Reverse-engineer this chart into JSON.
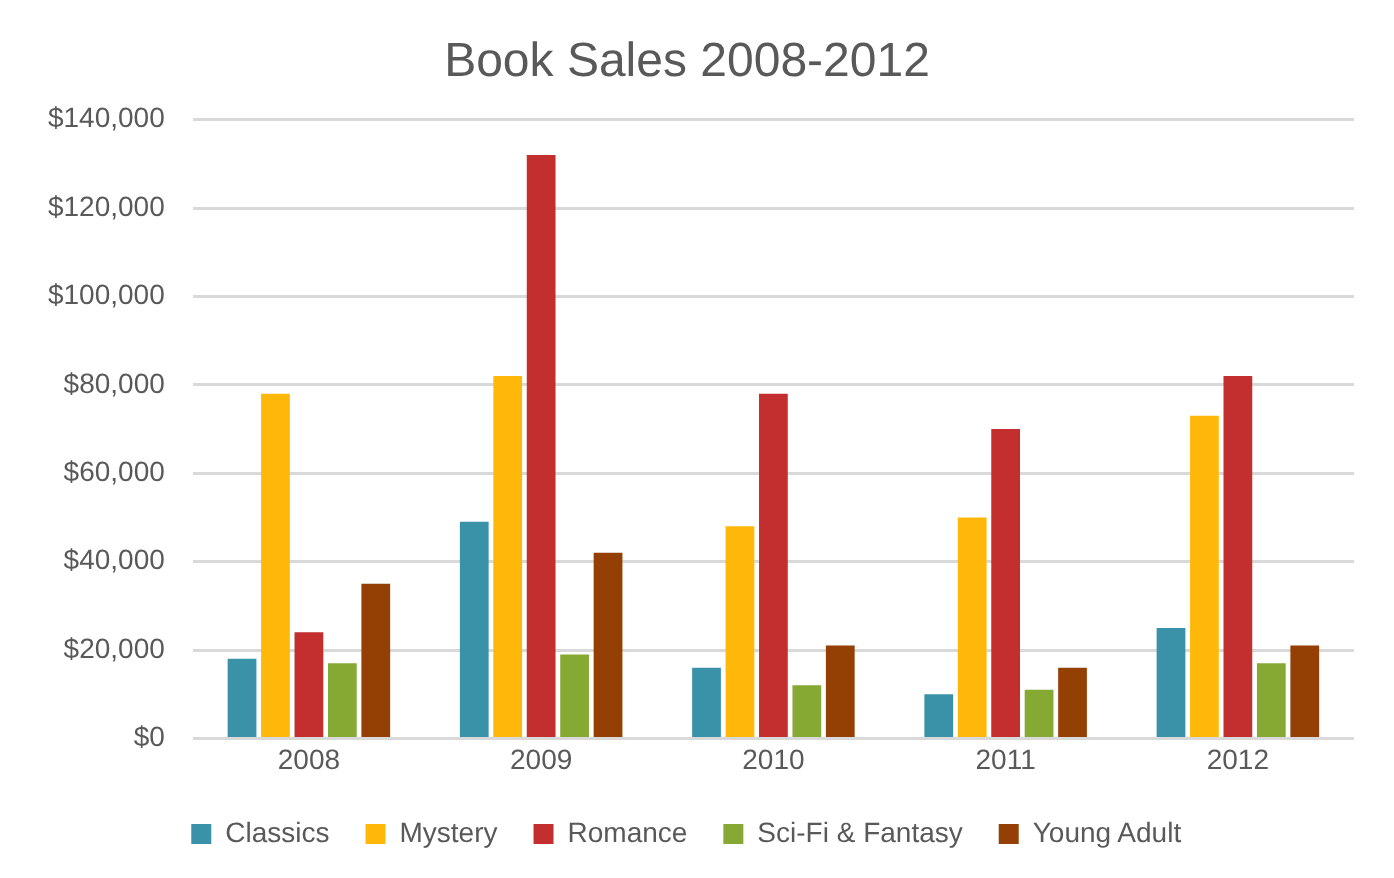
{
  "chart_data": {
    "type": "bar",
    "title": "Book Sales 2008-2012",
    "categories": [
      "2008",
      "2009",
      "2010",
      "2011",
      "2012"
    ],
    "series": [
      {
        "name": "Classics",
        "color": "#3a92a8",
        "values": [
          18000,
          49000,
          16000,
          10000,
          25000
        ]
      },
      {
        "name": "Mystery",
        "color": "#ffb80a",
        "values": [
          78000,
          82000,
          48000,
          50000,
          73000
        ]
      },
      {
        "name": "Romance",
        "color": "#c32f2f",
        "values": [
          24000,
          132000,
          78000,
          70000,
          82000
        ]
      },
      {
        "name": "Sci-Fi & Fantasy",
        "color": "#86a933",
        "values": [
          17000,
          19000,
          12000,
          11000,
          17000
        ]
      },
      {
        "name": "Young Adult",
        "color": "#943f03",
        "values": [
          35000,
          42000,
          21000,
          16000,
          21000
        ]
      }
    ],
    "ylim": [
      0,
      140000
    ],
    "yticks": [
      {
        "value": 0,
        "label": "$0"
      },
      {
        "value": 20000,
        "label": "$20,000"
      },
      {
        "value": 40000,
        "label": "$40,000"
      },
      {
        "value": 60000,
        "label": "$60,000"
      },
      {
        "value": 80000,
        "label": "$80,000"
      },
      {
        "value": 100000,
        "label": "$100,000"
      },
      {
        "value": 120000,
        "label": "$120,000"
      },
      {
        "value": 140000,
        "label": "$140,000"
      }
    ],
    "grid": "y",
    "legend": "bottom"
  }
}
